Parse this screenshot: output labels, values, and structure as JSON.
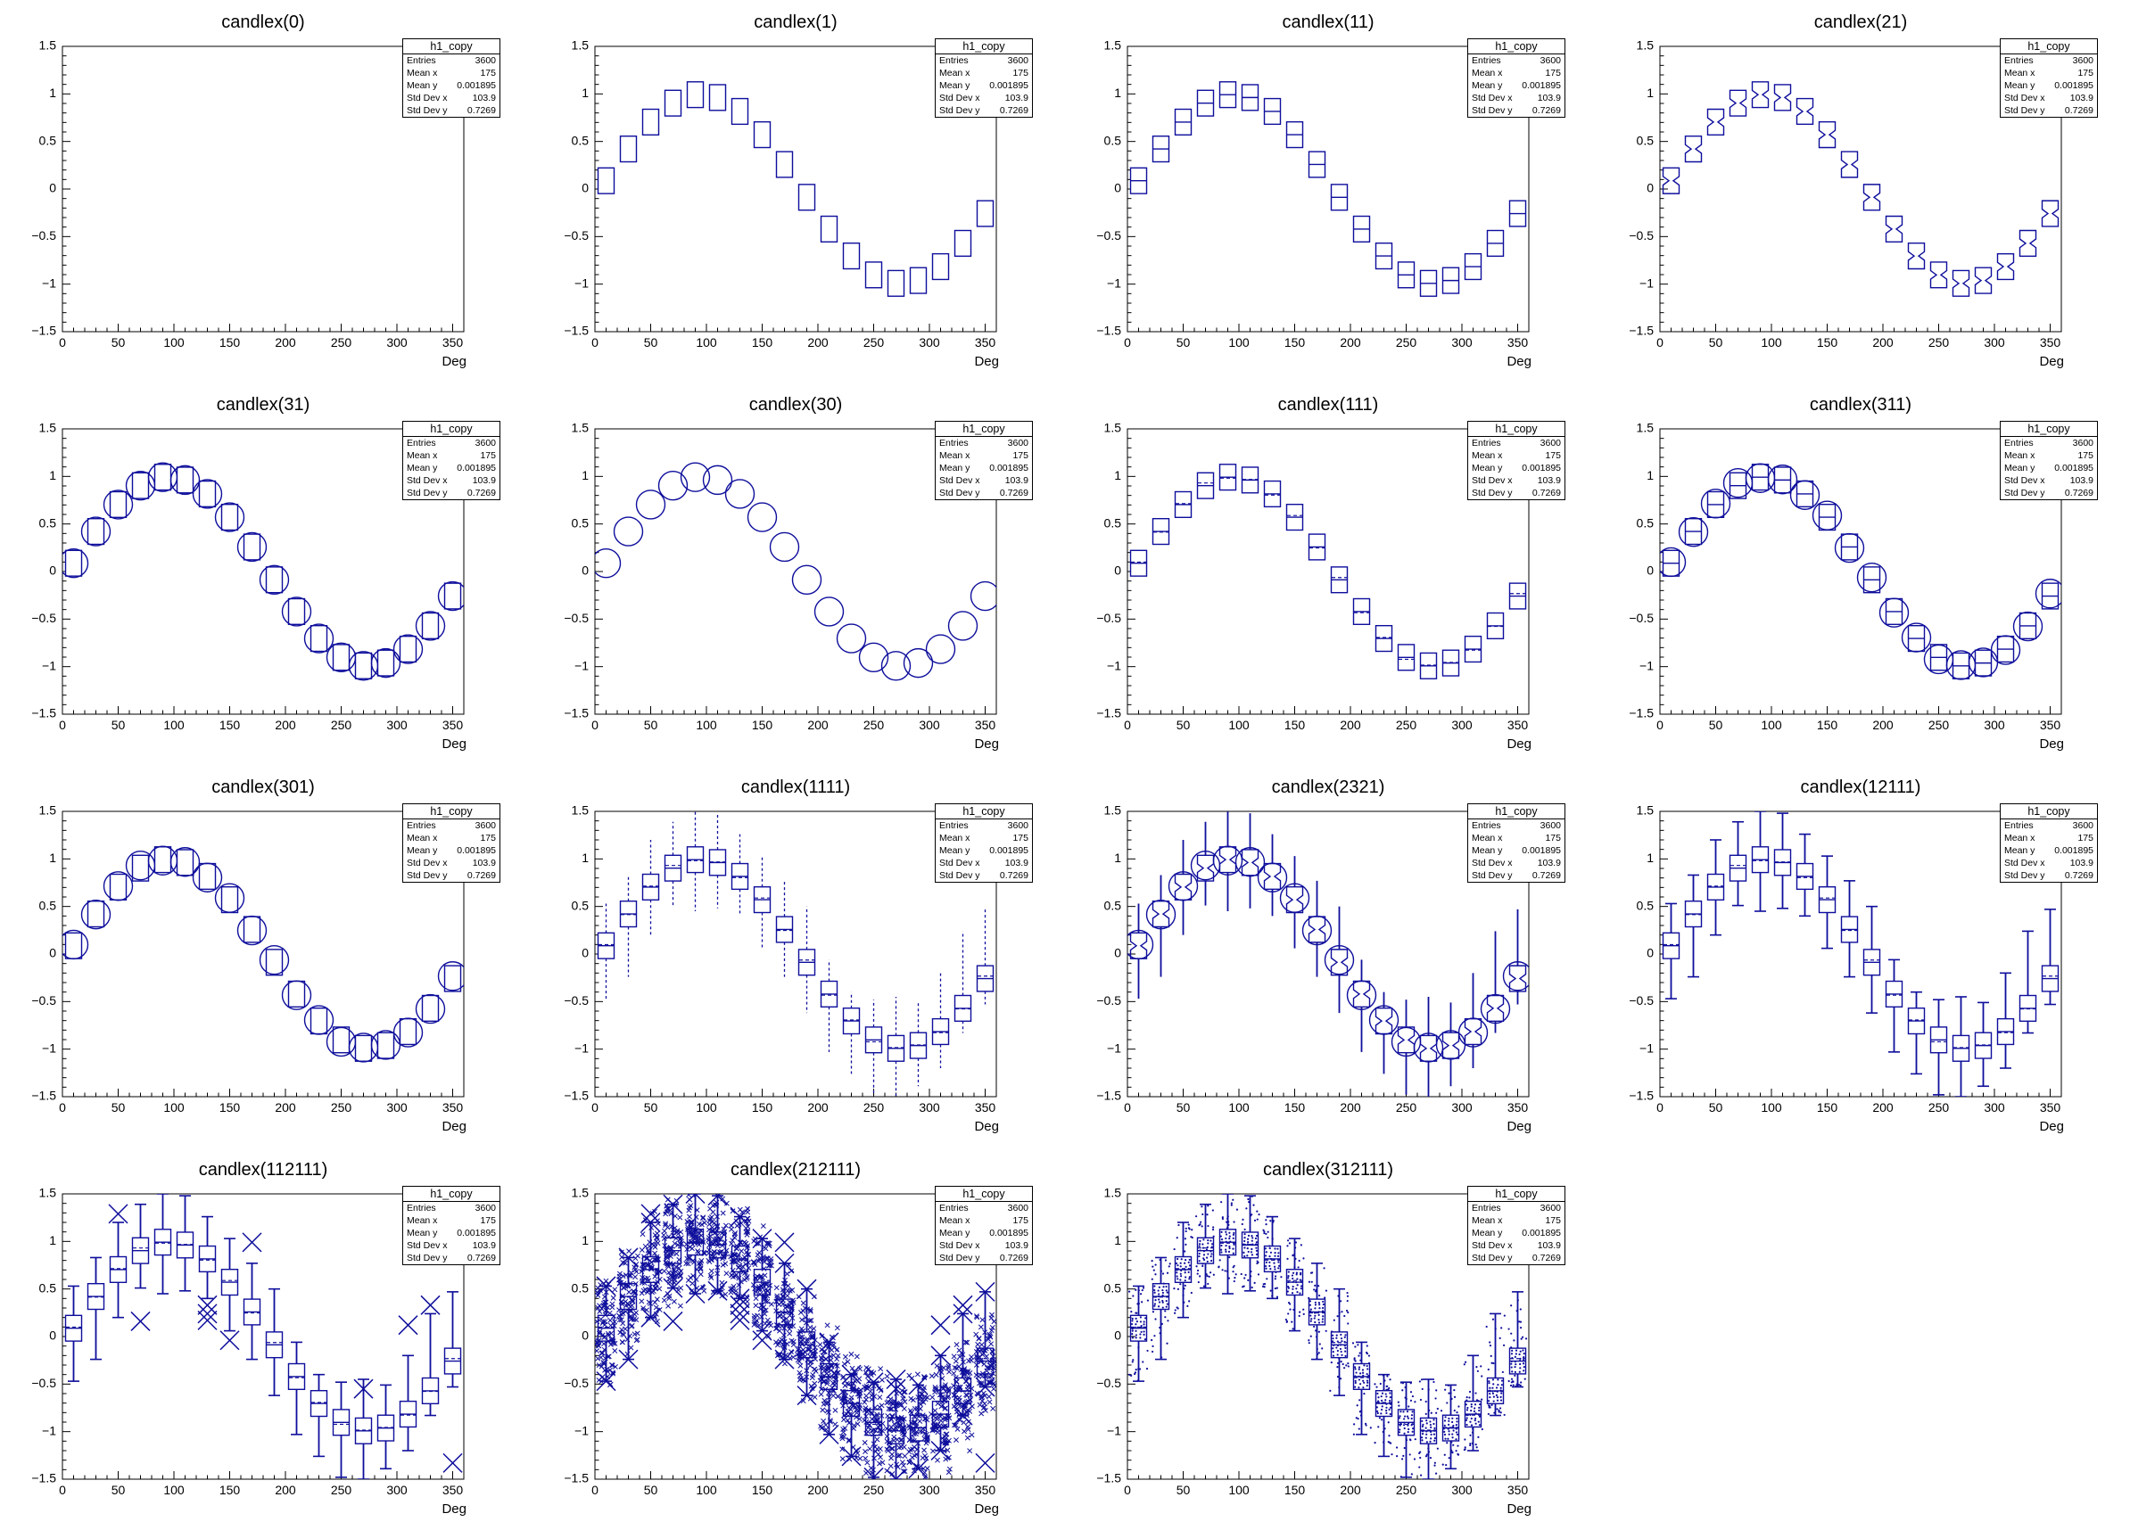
{
  "app": {
    "kind": "ROOT canvas candle-plot options demo",
    "background": "#ffffff"
  },
  "colors": {
    "candle_line": "#0e0e9c",
    "axis": "#000000",
    "text": "#000000",
    "stats_bg": "#ffffff"
  },
  "stats": {
    "title": "h1_copy",
    "rows": [
      {
        "label": "Entries",
        "value": "3600"
      },
      {
        "label": "Mean x",
        "value": "175"
      },
      {
        "label": "Mean y",
        "value": "0.001895"
      },
      {
        "label": "Std Dev x",
        "value": "103.9"
      },
      {
        "label": "Std Dev y",
        "value": "0.7269"
      }
    ]
  },
  "axes": {
    "x": {
      "min": 0,
      "max": 360,
      "title": "Deg",
      "major_values": [
        0,
        50,
        100,
        150,
        200,
        250,
        300,
        350
      ],
      "tick_labels": [
        "0",
        "50",
        "100",
        "150",
        "200",
        "250",
        "300",
        "350"
      ],
      "minor_step": 10
    },
    "y": {
      "min": -1.5,
      "max": 1.5,
      "major_values": [
        -1.5,
        -1,
        -0.5,
        0,
        0.5,
        1,
        1.5
      ],
      "tick_labels": [
        "−1.5",
        "−1",
        "−0.5",
        "0",
        "0.5",
        "1",
        "1.5"
      ],
      "minor_step": 0.1
    }
  },
  "panels": [
    {
      "title": "candlex(0)",
      "option": "0",
      "elements": []
    },
    {
      "title": "candlex(1)",
      "option": "1",
      "elements": [
        "box"
      ]
    },
    {
      "title": "candlex(11)",
      "option": "11",
      "elements": [
        "box",
        "median-line"
      ]
    },
    {
      "title": "candlex(21)",
      "option": "21",
      "elements": [
        "box-notched"
      ]
    },
    {
      "title": "candlex(31)",
      "option": "31",
      "elements": [
        "box",
        "median-circle"
      ]
    },
    {
      "title": "candlex(30)",
      "option": "30",
      "elements": [
        "median-circle"
      ]
    },
    {
      "title": "candlex(111)",
      "option": "111",
      "elements": [
        "box",
        "median-line",
        "mean-dash"
      ]
    },
    {
      "title": "candlex(311)",
      "option": "311",
      "elements": [
        "box",
        "median-line",
        "mean-circle"
      ]
    },
    {
      "title": "candlex(301)",
      "option": "301",
      "elements": [
        "box",
        "mean-circle"
      ]
    },
    {
      "title": "candlex(1111)",
      "option": "1111",
      "elements": [
        "box",
        "median-line",
        "mean-dash",
        "whisker-dashed"
      ]
    },
    {
      "title": "candlex(2321)",
      "option": "2321",
      "elements": [
        "box-notched",
        "mean-circle",
        "whisker-solid"
      ]
    },
    {
      "title": "candlex(12111)",
      "option": "12111",
      "elements": [
        "box",
        "median-line",
        "mean-dash",
        "whisker-solid",
        "anchors"
      ]
    },
    {
      "title": "candlex(112111)",
      "option": "112111",
      "elements": [
        "box",
        "median-line",
        "mean-dash",
        "whisker-solid",
        "anchors",
        "outliers"
      ]
    },
    {
      "title": "candlex(212111)",
      "option": "212111",
      "elements": [
        "box",
        "median-line",
        "mean-dash",
        "whisker-solid",
        "anchors",
        "outliers",
        "all-crosses"
      ]
    },
    {
      "title": "candlex(312111)",
      "option": "312111",
      "elements": [
        "box",
        "median-line",
        "mean-dash",
        "whisker-solid",
        "anchors",
        "scatter"
      ]
    },
    null
  ],
  "chart_data": {
    "type": "candlestick-grid",
    "title_pattern": "candlex(option)",
    "xlabel": "Deg",
    "ylabel": "",
    "xlim": [
      0,
      360
    ],
    "ylim": [
      -1.5,
      1.5
    ],
    "bin_width": 20,
    "x": [
      10,
      30,
      50,
      70,
      90,
      110,
      130,
      150,
      170,
      190,
      210,
      230,
      250,
      270,
      290,
      310,
      330,
      350
    ],
    "median": [
      0.087,
      0.421,
      0.704,
      0.903,
      0.992,
      0.962,
      0.816,
      0.571,
      0.258,
      -0.087,
      -0.421,
      -0.704,
      -0.903,
      -0.992,
      -0.962,
      -0.816,
      -0.571,
      -0.258
    ],
    "q1": [
      -0.048,
      0.286,
      0.569,
      0.768,
      0.857,
      0.827,
      0.681,
      0.436,
      0.123,
      -0.222,
      -0.556,
      -0.839,
      -1.038,
      -1.127,
      -1.097,
      -0.951,
      -0.706,
      -0.393
    ],
    "q3": [
      0.222,
      0.556,
      0.839,
      1.038,
      1.127,
      1.097,
      0.951,
      0.706,
      0.393,
      0.048,
      -0.286,
      -0.569,
      -0.768,
      -0.857,
      -0.827,
      -0.681,
      -0.436,
      -0.123
    ],
    "mean": [
      0.099,
      0.415,
      0.714,
      0.931,
      0.982,
      0.968,
      0.804,
      0.589,
      0.248,
      -0.063,
      -0.433,
      -0.694,
      -0.923,
      -0.984,
      -0.956,
      -0.826,
      -0.577,
      -0.232
    ],
    "whisker_low": [
      -0.47,
      -0.24,
      0.2,
      0.51,
      0.45,
      0.48,
      0.4,
      0.06,
      -0.24,
      -0.62,
      -1.03,
      -1.26,
      -1.48,
      -1.55,
      -1.39,
      -1.2,
      -0.83,
      -0.53
    ],
    "whisker_high": [
      0.53,
      0.83,
      1.2,
      1.39,
      1.55,
      1.48,
      1.26,
      1.03,
      0.77,
      0.5,
      -0.06,
      -0.4,
      -0.48,
      -0.45,
      -0.51,
      -0.2,
      0.24,
      0.47
    ],
    "outliers": [
      [
        50,
        1.29
      ],
      [
        70,
        0.16
      ],
      [
        130,
        0.33
      ],
      [
        130,
        0.24
      ],
      [
        130,
        0.17
      ],
      [
        150,
        -0.04
      ],
      [
        170,
        0.99
      ],
      [
        270,
        -0.55
      ],
      [
        310,
        0.12
      ],
      [
        330,
        0.33
      ],
      [
        350,
        -1.33
      ]
    ],
    "legend": "none",
    "grid": false
  }
}
